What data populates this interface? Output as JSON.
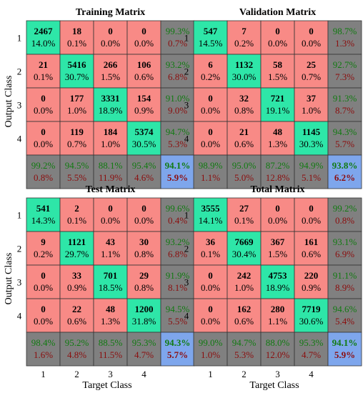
{
  "figure": {
    "ylabel": "Output Class",
    "xlabel": "Target Class"
  },
  "colors": {
    "correct": "#2ee6a8",
    "wrong": "#f88a86",
    "summary": "#808080",
    "total": "#7ea6ec",
    "pct_good": "#117a11",
    "pct_bad": "#8b0d0d"
  },
  "chart_data": [
    {
      "type": "heatmap",
      "title": "Training Matrix",
      "row_labels": [
        "1",
        "2",
        "3",
        "4"
      ],
      "col_labels": [
        "1",
        "2",
        "3",
        "4"
      ],
      "counts": [
        [
          2467,
          18,
          0,
          0
        ],
        [
          21,
          5416,
          266,
          106
        ],
        [
          0,
          177,
          3331,
          154
        ],
        [
          0,
          119,
          184,
          5374
        ]
      ],
      "cell_pct": [
        [
          "14.0%",
          "0.1%",
          "0.0%",
          "0.0%"
        ],
        [
          "0.1%",
          "30.7%",
          "1.5%",
          "0.6%"
        ],
        [
          "0.0%",
          "1.0%",
          "18.9%",
          "0.9%"
        ],
        [
          "0.0%",
          "0.7%",
          "1.0%",
          "30.5%"
        ]
      ],
      "row_summary": [
        [
          "99.3%",
          "0.7%"
        ],
        [
          "93.2%",
          "6.8%"
        ],
        [
          "91.0%",
          "9.0%"
        ],
        [
          "94.7%",
          "5.3%"
        ]
      ],
      "col_summary": [
        [
          "99.2%",
          "0.8%"
        ],
        [
          "94.5%",
          "5.5%"
        ],
        [
          "88.1%",
          "11.9%"
        ],
        [
          "95.4%",
          "4.6%"
        ]
      ],
      "total": [
        "94.1%",
        "5.9%"
      ]
    },
    {
      "type": "heatmap",
      "title": "Validation Matrix",
      "row_labels": [
        "1",
        "2",
        "3",
        "4"
      ],
      "col_labels": [
        "1",
        "2",
        "3",
        "4"
      ],
      "counts": [
        [
          547,
          7,
          0,
          0
        ],
        [
          6,
          1132,
          58,
          25
        ],
        [
          0,
          32,
          721,
          37
        ],
        [
          0,
          21,
          48,
          1145
        ]
      ],
      "cell_pct": [
        [
          "14.5%",
          "0.2%",
          "0.0%",
          "0.0%"
        ],
        [
          "0.2%",
          "30.0%",
          "1.5%",
          "0.7%"
        ],
        [
          "0.0%",
          "0.8%",
          "19.1%",
          "1.0%"
        ],
        [
          "0.0%",
          "0.6%",
          "1.3%",
          "30.3%"
        ]
      ],
      "row_summary": [
        [
          "98.7%",
          "1.3%"
        ],
        [
          "92.7%",
          "7.3%"
        ],
        [
          "91.3%",
          "8.7%"
        ],
        [
          "94.3%",
          "5.7%"
        ]
      ],
      "col_summary": [
        [
          "98.9%",
          "1.1%"
        ],
        [
          "95.0%",
          "5.0%"
        ],
        [
          "87.2%",
          "12.8%"
        ],
        [
          "94.9%",
          "5.1%"
        ]
      ],
      "total": [
        "93.8%",
        "6.2%"
      ]
    },
    {
      "type": "heatmap",
      "title": "Test Matrix",
      "row_labels": [
        "1",
        "2",
        "3",
        "4"
      ],
      "col_labels": [
        "1",
        "2",
        "3",
        "4"
      ],
      "counts": [
        [
          541,
          2,
          0,
          0
        ],
        [
          9,
          1121,
          43,
          30
        ],
        [
          0,
          33,
          701,
          29
        ],
        [
          0,
          22,
          48,
          1200
        ]
      ],
      "cell_pct": [
        [
          "14.3%",
          "0.1%",
          "0.0%",
          "0.0%"
        ],
        [
          "0.2%",
          "29.7%",
          "1.1%",
          "0.8%"
        ],
        [
          "0.0%",
          "0.9%",
          "18.5%",
          "0.8%"
        ],
        [
          "0.0%",
          "0.6%",
          "1.3%",
          "31.8%"
        ]
      ],
      "row_summary": [
        [
          "99.6%",
          "0.4%"
        ],
        [
          "93.2%",
          "6.8%"
        ],
        [
          "91.9%",
          "8.1%"
        ],
        [
          "94.5%",
          "5.5%"
        ]
      ],
      "col_summary": [
        [
          "98.4%",
          "1.6%"
        ],
        [
          "95.2%",
          "4.8%"
        ],
        [
          "88.5%",
          "11.5%"
        ],
        [
          "95.3%",
          "4.7%"
        ]
      ],
      "total": [
        "94.3%",
        "5.7%"
      ]
    },
    {
      "type": "heatmap",
      "title": "Total Matrix",
      "row_labels": [
        "1",
        "2",
        "3",
        "4"
      ],
      "col_labels": [
        "1",
        "2",
        "3",
        "4"
      ],
      "counts": [
        [
          3555,
          27,
          0,
          0
        ],
        [
          36,
          7669,
          367,
          161
        ],
        [
          0,
          242,
          4753,
          220
        ],
        [
          0,
          162,
          280,
          7719
        ]
      ],
      "cell_pct": [
        [
          "14.1%",
          "0.1%",
          "0.0%",
          "0.0%"
        ],
        [
          "0.1%",
          "30.4%",
          "1.5%",
          "0.6%"
        ],
        [
          "0.0%",
          "1.0%",
          "18.9%",
          "0.9%"
        ],
        [
          "0.0%",
          "0.6%",
          "1.1%",
          "30.6%"
        ]
      ],
      "row_summary": [
        [
          "99.2%",
          "0.8%"
        ],
        [
          "93.1%",
          "6.9%"
        ],
        [
          "91.1%",
          "8.9%"
        ],
        [
          "94.6%",
          "5.4%"
        ]
      ],
      "col_summary": [
        [
          "99.0%",
          "1.0%"
        ],
        [
          "94.7%",
          "5.3%"
        ],
        [
          "88.0%",
          "12.0%"
        ],
        [
          "95.3%",
          "4.7%"
        ]
      ],
      "total": [
        "94.1%",
        "5.9%"
      ]
    }
  ]
}
